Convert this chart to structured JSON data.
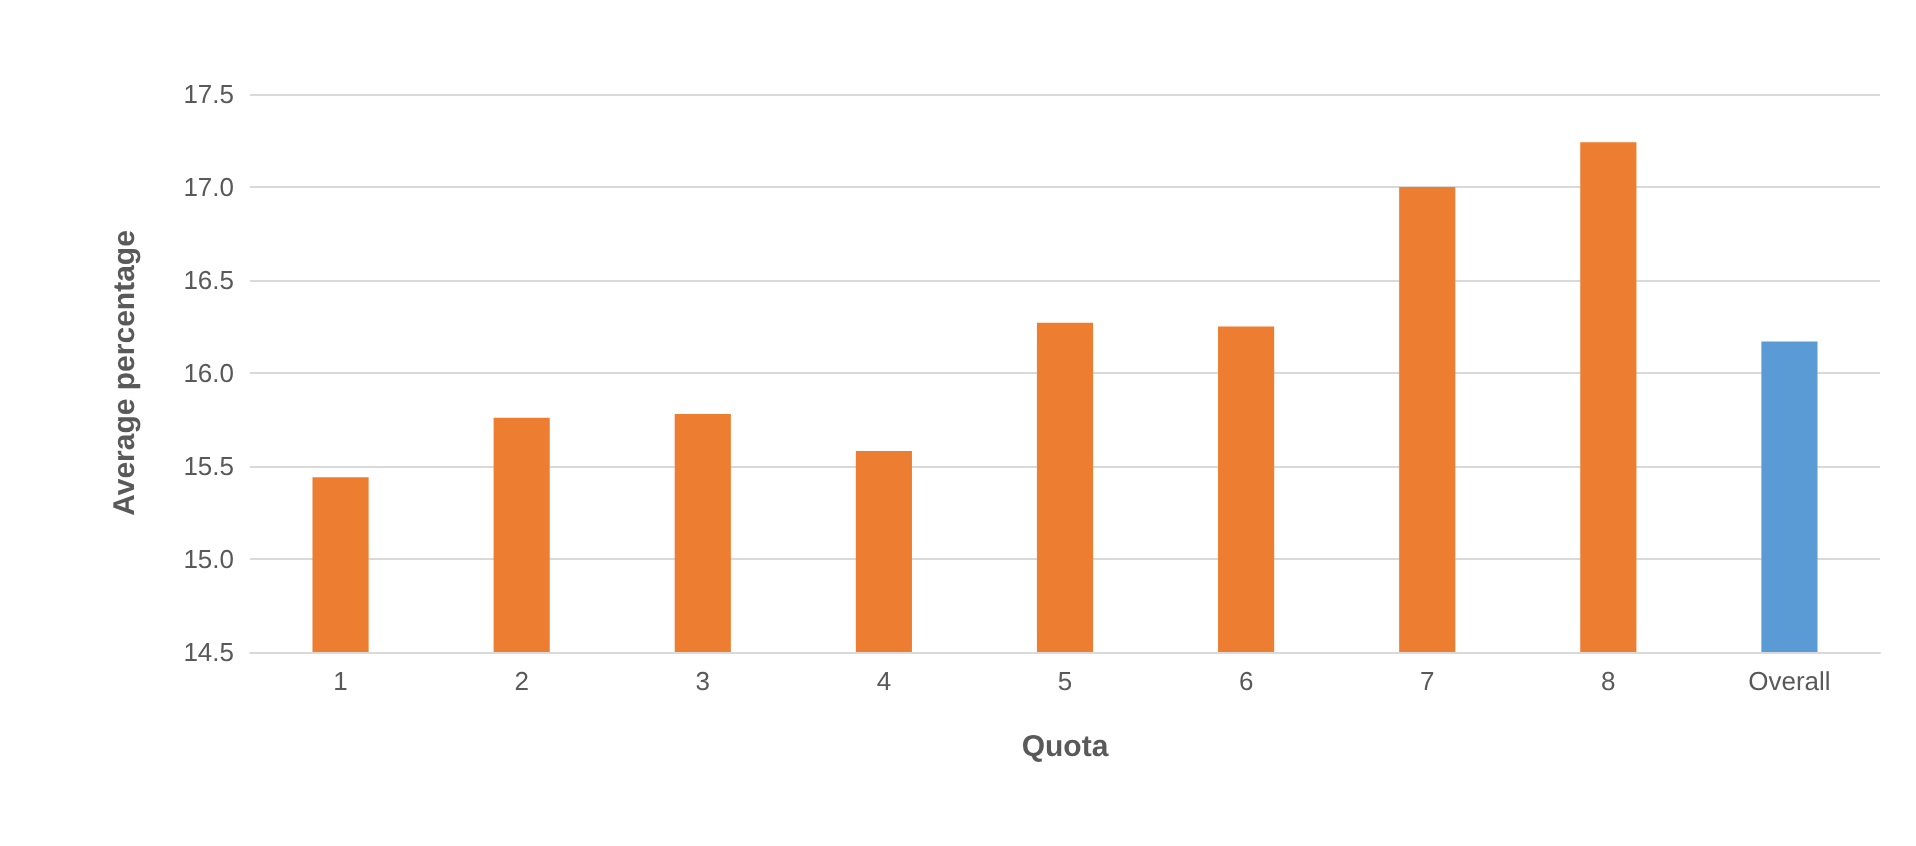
{
  "chart_data": {
    "type": "bar",
    "xlabel": "Quota",
    "ylabel": "Average percentage",
    "categories": [
      "1",
      "2",
      "3",
      "4",
      "5",
      "6",
      "7",
      "8",
      "Overall"
    ],
    "values": [
      15.44,
      15.76,
      15.78,
      15.58,
      16.27,
      16.25,
      17.0,
      17.24,
      16.17
    ],
    "colors": [
      "#ed7d31",
      "#ed7d31",
      "#ed7d31",
      "#ed7d31",
      "#ed7d31",
      "#ed7d31",
      "#ed7d31",
      "#ed7d31",
      "#5b9bd5"
    ],
    "ylim": [
      14.5,
      17.5
    ],
    "yticks": [
      14.5,
      {
        "value": 15,
        "label": "15.0"
      },
      15.5,
      {
        "value": 16,
        "label": "16.0"
      },
      16.5,
      {
        "value": 17,
        "label": "17.0"
      },
      17.5
    ],
    "grid": "y"
  }
}
